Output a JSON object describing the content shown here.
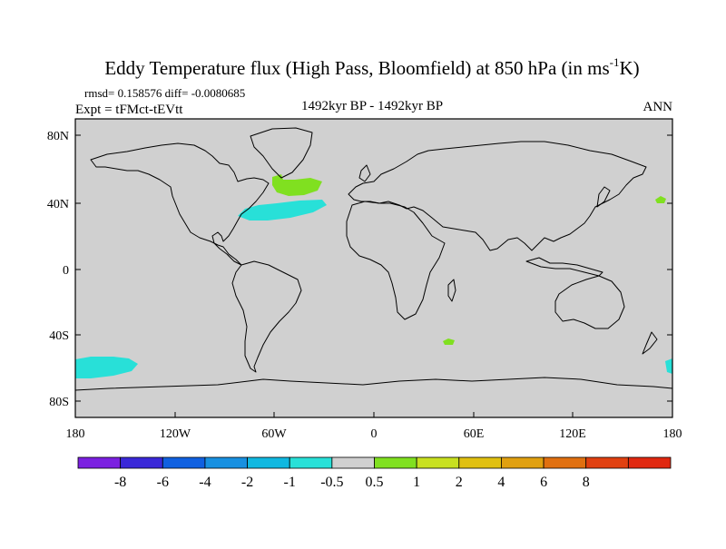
{
  "title": {
    "main": "Eddy Temperature flux (High Pass, Bloomfield) at 850 hPa (in ms",
    "superscript": "-1",
    "tail": "K)"
  },
  "stats": "rmsd= 0.158576  diff= -0.0080685",
  "experiment": "Expt = tFMct-tEVtt",
  "period": "1492kyr BP - 1492kyr BP",
  "season": "ANN",
  "lat_labels": [
    "80N",
    "40N",
    "0",
    "40S",
    "80S"
  ],
  "lon_labels": [
    "180",
    "120W",
    "60W",
    "0",
    "60E",
    "120E",
    "180"
  ],
  "colorbar": {
    "colors": [
      "#7b20e0",
      "#3a28d8",
      "#1060e0",
      "#1890e0",
      "#10b8e0",
      "#28e0d8",
      "#d0d0d0",
      "#80e020",
      "#c8e020",
      "#e0c010",
      "#e0a010",
      "#e07010",
      "#e04010",
      "#e02810"
    ],
    "labels": [
      "-8",
      "-6",
      "-4",
      "-2",
      "-1",
      "-0.5",
      "0.5",
      "1",
      "2",
      "4",
      "6",
      "8"
    ]
  },
  "colors": {
    "land_ocean_bg": "#d0d0d0",
    "positive_fill": "#80e020",
    "negative_fill": "#28e0d8",
    "coast": "#000000"
  }
}
